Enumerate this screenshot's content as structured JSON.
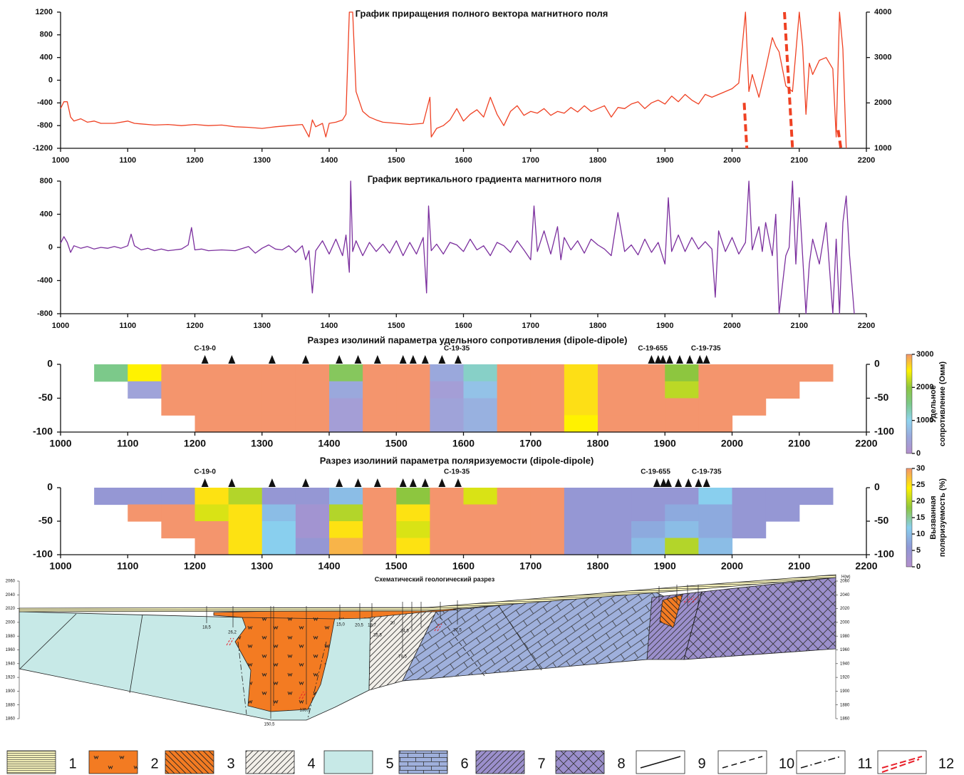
{
  "chart_data": [
    {
      "type": "line",
      "title": "График приращения полного вектора магнитного поля",
      "xlim": [
        1000,
        2200
      ],
      "xticks": [
        1000,
        1100,
        1200,
        1300,
        1400,
        1500,
        1600,
        1700,
        1800,
        1900,
        2000,
        2100,
        2200
      ],
      "ylim": [
        -1200,
        1200
      ],
      "yticks": [
        -1200,
        -800,
        -400,
        0,
        400,
        800,
        1200
      ],
      "y2lim": [
        1000,
        4000
      ],
      "y2ticks": [
        1000,
        2000,
        3000,
        4000
      ],
      "series": [
        {
          "color": "#ef4123",
          "x": [
            1000,
            1005,
            1010,
            1015,
            1020,
            1030,
            1040,
            1050,
            1060,
            1080,
            1100,
            1110,
            1120,
            1140,
            1160,
            1180,
            1200,
            1220,
            1240,
            1260,
            1280,
            1300,
            1320,
            1340,
            1360,
            1370,
            1375,
            1380,
            1390,
            1395,
            1400,
            1410,
            1420,
            1425,
            1430,
            1435,
            1440,
            1450,
            1460,
            1470,
            1480,
            1500,
            1520,
            1540,
            1550,
            1552,
            1560,
            1570,
            1580,
            1590,
            1600,
            1610,
            1620,
            1630,
            1640,
            1650,
            1660,
            1670,
            1680,
            1690,
            1700,
            1710,
            1720,
            1730,
            1740,
            1750,
            1760,
            1770,
            1780,
            1790,
            1800,
            1810,
            1820,
            1830,
            1840,
            1850,
            1860,
            1870,
            1880,
            1890,
            1900,
            1910,
            1920,
            1930,
            1940,
            1950,
            1960,
            1970,
            1980,
            1990,
            2000,
            2010,
            2020,
            2025,
            2030,
            2040,
            2050,
            2060,
            2065,
            2070,
            2080,
            2090,
            2100,
            2105,
            2110,
            2115,
            2120,
            2130,
            2140,
            2150,
            2155,
            2160,
            2165,
            2170
          ],
          "values": [
            -500,
            -380,
            -380,
            -650,
            -720,
            -680,
            -740,
            -720,
            -760,
            -760,
            -720,
            -760,
            -770,
            -790,
            -780,
            -800,
            -780,
            -800,
            -790,
            -820,
            -830,
            -850,
            -820,
            -800,
            -780,
            -1000,
            -700,
            -820,
            -760,
            -1000,
            -760,
            -740,
            -700,
            -600,
            1200,
            1200,
            -200,
            -550,
            -650,
            -700,
            -740,
            -760,
            -780,
            -760,
            -300,
            -1000,
            -850,
            -800,
            -700,
            -500,
            -720,
            -600,
            -520,
            -650,
            -300,
            -600,
            -800,
            -550,
            -450,
            -620,
            -550,
            -580,
            -500,
            -620,
            -550,
            -580,
            -480,
            -560,
            -450,
            -550,
            -500,
            -450,
            -650,
            -480,
            -500,
            -420,
            -380,
            -500,
            -400,
            -350,
            -420,
            -280,
            -380,
            -250,
            -350,
            -420,
            -250,
            -300,
            -250,
            -200,
            -150,
            -50,
            1200,
            -200,
            100,
            -300,
            200,
            750,
            600,
            500,
            -100,
            -200,
            1200,
            600,
            -600,
            300,
            100,
            350,
            400,
            200,
            -1000,
            1200,
            550,
            -1200
          ]
        },
        {
          "color": "#ef4123",
          "axis": "y2",
          "dashed": true,
          "x": [
            2018,
            2020,
            2022,
            2023,
            2078,
            2082,
            2086,
            2090,
            2095,
            2158,
            2162
          ],
          "values": [
            2000,
            1500,
            1000,
            null,
            4000,
            3000,
            2000,
            1000,
            null,
            1400,
            1000
          ]
        }
      ]
    },
    {
      "type": "line",
      "title": "График вертикального градиента  магнитного поля",
      "xlim": [
        1000,
        2200
      ],
      "xticks": [
        1000,
        1100,
        1200,
        1300,
        1400,
        1500,
        1600,
        1700,
        1800,
        1900,
        2000,
        2100,
        2200
      ],
      "ylim": [
        -800,
        800
      ],
      "yticks": [
        -800,
        -400,
        0,
        400,
        800
      ],
      "series": [
        {
          "color": "#7b2f9e",
          "x": [
            1000,
            1005,
            1010,
            1015,
            1020,
            1030,
            1040,
            1050,
            1060,
            1070,
            1080,
            1090,
            1100,
            1105,
            1110,
            1120,
            1130,
            1140,
            1150,
            1160,
            1170,
            1180,
            1190,
            1195,
            1200,
            1210,
            1220,
            1240,
            1260,
            1280,
            1290,
            1300,
            1310,
            1320,
            1330,
            1340,
            1350,
            1360,
            1365,
            1370,
            1375,
            1380,
            1390,
            1400,
            1410,
            1420,
            1425,
            1430,
            1432,
            1435,
            1440,
            1450,
            1460,
            1470,
            1480,
            1490,
            1500,
            1510,
            1520,
            1530,
            1540,
            1545,
            1548,
            1552,
            1560,
            1570,
            1580,
            1590,
            1600,
            1610,
            1620,
            1630,
            1640,
            1650,
            1660,
            1670,
            1680,
            1690,
            1700,
            1705,
            1710,
            1720,
            1730,
            1740,
            1745,
            1750,
            1760,
            1770,
            1780,
            1790,
            1800,
            1810,
            1820,
            1830,
            1840,
            1850,
            1860,
            1870,
            1880,
            1890,
            1900,
            1905,
            1910,
            1920,
            1930,
            1940,
            1950,
            1960,
            1970,
            1975,
            1980,
            1990,
            2000,
            2010,
            2020,
            2025,
            2030,
            2040,
            2045,
            2050,
            2060,
            2065,
            2070,
            2080,
            2085,
            2090,
            2095,
            2100,
            2110,
            2115,
            2120,
            2130,
            2140,
            2150,
            2155,
            2160,
            2165,
            2170,
            2175,
            2182
          ],
          "values": [
            50,
            130,
            60,
            -60,
            20,
            -10,
            10,
            -20,
            0,
            -10,
            10,
            -10,
            20,
            160,
            20,
            -30,
            -10,
            -40,
            -20,
            -40,
            -30,
            -20,
            30,
            240,
            -30,
            -20,
            -40,
            -30,
            -40,
            10,
            -70,
            -10,
            30,
            -20,
            -30,
            20,
            -60,
            20,
            -150,
            -40,
            -550,
            -40,
            80,
            -80,
            100,
            -100,
            150,
            -300,
            800,
            -50,
            80,
            -100,
            60,
            -50,
            40,
            -70,
            80,
            -100,
            60,
            -80,
            120,
            -550,
            500,
            -40,
            40,
            -80,
            60,
            30,
            -50,
            100,
            -30,
            20,
            -100,
            60,
            20,
            -60,
            80,
            -30,
            -150,
            500,
            -50,
            200,
            -80,
            250,
            -150,
            120,
            -30,
            80,
            -70,
            100,
            30,
            -20,
            -100,
            420,
            -50,
            30,
            -90,
            100,
            -60,
            60,
            -200,
            600,
            -50,
            150,
            -50,
            120,
            -20,
            70,
            -20,
            -600,
            200,
            -50,
            120,
            -80,
            60,
            800,
            -30,
            250,
            -50,
            300,
            -100,
            400,
            -800,
            -100,
            0,
            800,
            -200,
            600,
            -800,
            -200,
            100,
            -200,
            300,
            -800,
            100,
            -800,
            300,
            620,
            -100,
            -800
          ]
        }
      ]
    },
    {
      "type": "contour",
      "title": "Разрез изолиний параметра удельного сопротивления (dipole-dipole)",
      "xlim": [
        1000,
        2200
      ],
      "xticks": [
        1000,
        1100,
        1200,
        1300,
        1400,
        1500,
        1600,
        1700,
        1800,
        1900,
        2000,
        2100,
        2200
      ],
      "ylim": [
        -100,
        0
      ],
      "yticks": [
        0,
        -50,
        -100
      ],
      "x": [
        1025,
        1075,
        1125,
        1175,
        1225,
        1275,
        1325,
        1375,
        1425,
        1475,
        1525,
        1575,
        1625,
        1675,
        1725,
        1775,
        1825,
        1875,
        1925,
        1975,
        2025,
        2075,
        2125,
        2175
      ],
      "depths": [
        -12.5,
        -37.5,
        -62.5,
        -87.5
      ],
      "values": [
        [
          null,
          1500,
          2500,
          3000,
          3000,
          3000,
          3000,
          3000,
          1800,
          3000,
          3000,
          500,
          1200,
          3000,
          3000,
          2600,
          3000,
          3000,
          2000,
          3000,
          3000,
          3000,
          3000,
          null
        ],
        [
          null,
          null,
          400,
          3000,
          3000,
          3000,
          3000,
          3000,
          500,
          3000,
          3000,
          300,
          800,
          3000,
          3000,
          2600,
          3000,
          3000,
          2200,
          3000,
          3000,
          3000,
          null,
          null
        ],
        [
          null,
          null,
          null,
          3000,
          3000,
          3000,
          3000,
          3000,
          300,
          3000,
          3000,
          400,
          600,
          3000,
          3000,
          2600,
          3000,
          3000,
          3000,
          3000,
          3000,
          null,
          null,
          null
        ],
        [
          null,
          null,
          null,
          null,
          3000,
          3000,
          3000,
          3000,
          300,
          3000,
          3000,
          400,
          600,
          3000,
          3000,
          2500,
          3000,
          3000,
          3000,
          3000,
          null,
          null,
          null,
          null
        ]
      ],
      "clim": [
        0,
        3000
      ],
      "cticks": [
        0,
        1000,
        2000,
        3000
      ],
      "colormap": [
        "#b48fcc",
        "#9aa8dc",
        "#8fd4ef",
        "#7cc98a",
        "#8dc63f",
        "#fff200",
        "#f4956d"
      ],
      "colorbar_label": [
        "Удельное",
        "сопротивление (Омм)"
      ],
      "stations": [
        1215,
        1255,
        1315,
        1365,
        1415,
        1443,
        1472,
        1510,
        1525,
        1543,
        1568,
        1592,
        1880,
        1890,
        1897,
        1907,
        1922,
        1937,
        1952,
        1962
      ],
      "annotations": [
        {
          "x": 1215,
          "text": "С-19-0"
        },
        {
          "x": 1590,
          "text": "С-19-35"
        },
        {
          "x": 1882,
          "text": "С-19-655"
        },
        {
          "x": 1961,
          "text": "С-19-735"
        }
      ]
    },
    {
      "type": "contour",
      "title": "Разрез изолиний параметра поляризуемости (dipole-dipole)",
      "xlim": [
        1000,
        2200
      ],
      "xticks": [
        1000,
        1100,
        1200,
        1300,
        1400,
        1500,
        1600,
        1700,
        1800,
        1900,
        2000,
        2100,
        2200
      ],
      "ylim": [
        -100,
        0
      ],
      "yticks": [
        0,
        -50,
        -100
      ],
      "x": [
        1025,
        1075,
        1125,
        1175,
        1225,
        1275,
        1325,
        1375,
        1425,
        1475,
        1525,
        1575,
        1625,
        1675,
        1725,
        1775,
        1825,
        1875,
        1925,
        1975,
        2025,
        2075,
        2125,
        2175
      ],
      "depths": [
        -12.5,
        -37.5,
        -62.5,
        -87.5
      ],
      "values": [
        [
          null,
          5,
          5,
          5,
          25,
          20,
          5,
          5,
          10,
          30,
          18,
          30,
          22,
          30,
          30,
          5,
          5,
          5,
          5,
          12,
          5,
          5,
          5,
          null
        ],
        [
          null,
          null,
          30,
          30,
          22,
          25,
          10,
          3,
          20,
          30,
          25,
          30,
          30,
          30,
          30,
          5,
          5,
          5,
          8,
          8,
          5,
          5,
          null,
          null
        ],
        [
          null,
          null,
          null,
          30,
          30,
          25,
          12,
          3,
          25,
          30,
          22,
          30,
          30,
          30,
          30,
          5,
          5,
          8,
          10,
          8,
          5,
          null,
          null,
          null
        ],
        [
          null,
          null,
          null,
          null,
          30,
          25,
          12,
          5,
          28,
          30,
          25,
          30,
          30,
          30,
          30,
          5,
          5,
          10,
          20,
          10,
          null,
          null,
          null,
          null
        ]
      ],
      "clim": [
        0,
        30
      ],
      "cticks": [
        0,
        5,
        10,
        15,
        20,
        25,
        30
      ],
      "colormap": [
        "#b48fcc",
        "#8f98d6",
        "#89cfee",
        "#8dc63f",
        "#fff200",
        "#f4956d"
      ],
      "colorbar_label": [
        "Вызванная",
        "поляризуемость (%)"
      ],
      "stations": [
        1215,
        1255,
        1315,
        1365,
        1415,
        1443,
        1472,
        1510,
        1525,
        1543,
        1568,
        1592,
        1888,
        1898,
        1905,
        1920,
        1935,
        1950,
        1962
      ],
      "annotations": [
        {
          "x": 1215,
          "text": "С-19-0"
        },
        {
          "x": 1590,
          "text": "С-19-35"
        },
        {
          "x": 1886,
          "text": "С-19-655"
        },
        {
          "x": 1962,
          "text": "С-19-735"
        }
      ]
    },
    {
      "type": "section",
      "title": "Схематический геологический разрез",
      "ylim": [
        1860,
        2060
      ],
      "yticks": [
        1860,
        1880,
        1900,
        1920,
        1940,
        1960,
        1980,
        2000,
        2020,
        2040,
        2060
      ],
      "ylabel": "H(м)",
      "labels": [
        "18,5",
        "26,2",
        "150,5",
        "135,5",
        "15,0",
        "20,5",
        "18,7",
        "35,5",
        "20",
        "24,5",
        "37,5",
        "79,5"
      ],
      "legend": [
        "1",
        "2",
        "3",
        "4",
        "5",
        "6",
        "7",
        "8",
        "9",
        "10",
        "11",
        "12"
      ]
    }
  ]
}
